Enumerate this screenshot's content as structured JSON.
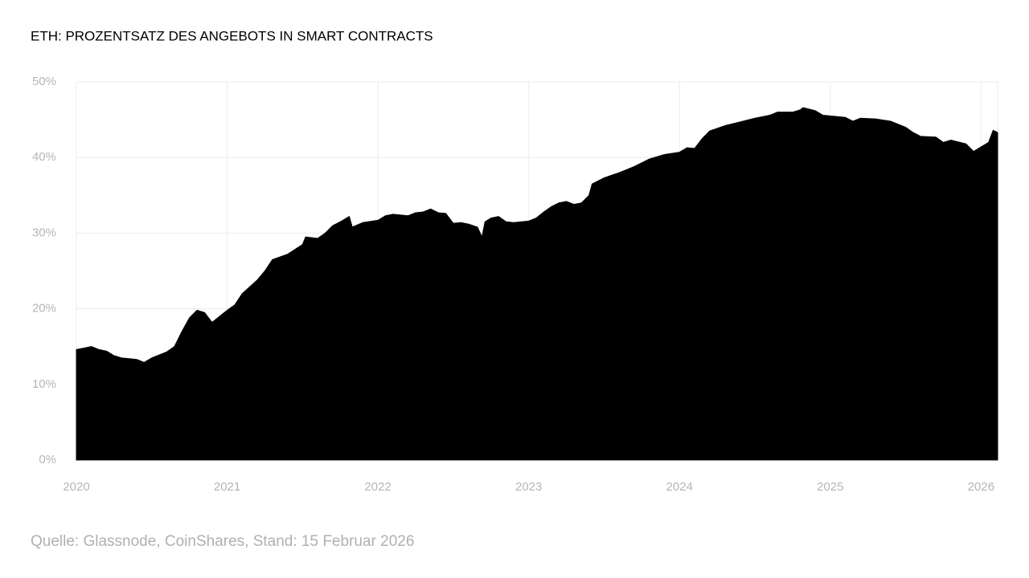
{
  "chart_data": {
    "type": "area",
    "title": "ETH: PROZENTSATZ DES ANGEBOTS IN SMART CONTRACTS",
    "source": "Quelle: Glassnode, CoinShares, Stand: 15 Februar 2026",
    "color": "#000000",
    "grid": true,
    "x": [
      2020.0,
      2020.05,
      2020.1,
      2020.15,
      2020.2,
      2020.25,
      2020.3,
      2020.35,
      2020.4,
      2020.45,
      2020.5,
      2020.6,
      2020.65,
      2020.7,
      2020.75,
      2020.8,
      2020.85,
      2020.9,
      2020.95,
      2021.0,
      2021.05,
      2021.1,
      2021.2,
      2021.25,
      2021.3,
      2021.4,
      2021.5,
      2021.52,
      2021.6,
      2021.65,
      2021.7,
      2021.75,
      2021.81,
      2021.83,
      2021.9,
      2022.0,
      2022.05,
      2022.1,
      2022.2,
      2022.25,
      2022.3,
      2022.35,
      2022.4,
      2022.45,
      2022.5,
      2022.55,
      2022.6,
      2022.66,
      2022.69,
      2022.71,
      2022.75,
      2022.8,
      2022.85,
      2022.9,
      2023.0,
      2023.05,
      2023.1,
      2023.15,
      2023.2,
      2023.25,
      2023.3,
      2023.35,
      2023.4,
      2023.42,
      2023.5,
      2023.6,
      2023.7,
      2023.8,
      2023.9,
      2024.0,
      2024.05,
      2024.1,
      2024.15,
      2024.2,
      2024.3,
      2024.4,
      2024.5,
      2024.6,
      2024.65,
      2024.75,
      2024.8,
      2024.82,
      2024.9,
      2024.95,
      2025.0,
      2025.1,
      2025.15,
      2025.2,
      2025.3,
      2025.4,
      2025.5,
      2025.55,
      2025.6,
      2025.7,
      2025.75,
      2025.8,
      2025.9,
      2025.95,
      2026.05,
      2026.08,
      2026.11
    ],
    "values": [
      14.6,
      14.8,
      15.0,
      14.6,
      14.4,
      13.8,
      13.5,
      13.4,
      13.3,
      12.9,
      13.5,
      14.3,
      15.0,
      17.0,
      18.8,
      19.8,
      19.5,
      18.2,
      19.0,
      19.8,
      20.5,
      22.0,
      23.8,
      25.0,
      26.5,
      27.2,
      28.5,
      29.5,
      29.3,
      30.0,
      31.0,
      31.5,
      32.2,
      30.8,
      31.4,
      31.7,
      32.3,
      32.5,
      32.3,
      32.7,
      32.8,
      33.2,
      32.7,
      32.6,
      31.3,
      31.4,
      31.2,
      30.8,
      29.5,
      31.5,
      32.0,
      32.2,
      31.5,
      31.4,
      31.6,
      32.0,
      32.8,
      33.5,
      34.0,
      34.2,
      33.8,
      34.0,
      35.0,
      36.5,
      37.3,
      38.0,
      38.8,
      39.8,
      40.4,
      40.7,
      41.3,
      41.2,
      42.5,
      43.5,
      44.2,
      44.7,
      45.2,
      45.6,
      46.0,
      46.0,
      46.3,
      46.6,
      46.2,
      45.6,
      45.5,
      45.3,
      44.8,
      45.2,
      45.1,
      44.8,
      44.0,
      43.3,
      42.8,
      42.7,
      42.0,
      42.3,
      41.8,
      40.8,
      42.0,
      43.6,
      43.3
    ],
    "xlim": [
      2020,
      2026.11
    ],
    "xticks": [
      2020,
      2021,
      2022,
      2023,
      2024,
      2025,
      2026
    ],
    "ylim": [
      0,
      50
    ],
    "yticks": [
      {
        "value": 0,
        "label": "0%"
      },
      {
        "value": 10,
        "label": "10%"
      },
      {
        "value": 20,
        "label": "20%"
      },
      {
        "value": 30,
        "label": "30%"
      },
      {
        "value": 40,
        "label": "40%"
      },
      {
        "value": 50,
        "label": "50%"
      }
    ]
  }
}
